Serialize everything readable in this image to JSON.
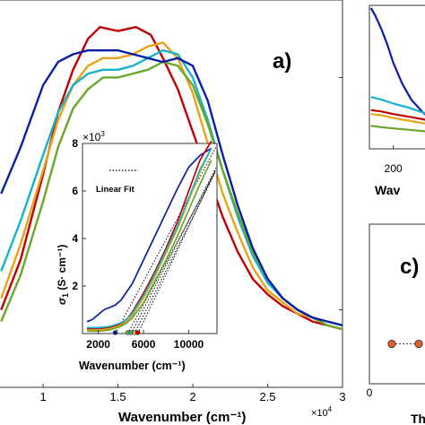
{
  "chart_data": [
    {
      "type": "line",
      "panel_label": "a)",
      "xlabel": "Wavenumber (cm⁻¹)",
      "x_exponent_label": "×10",
      "x_exponent_power": "4",
      "xlim": [
        0.7,
        3.0
      ],
      "ylim": [
        0,
        1
      ],
      "x_ticks": [
        1,
        1.5,
        2,
        2.5,
        3
      ],
      "x_tick_labels": [
        "1",
        "1.5",
        "2",
        "2.5",
        "3"
      ],
      "series": [
        {
          "color": "#c00000",
          "x": [
            0.72,
            0.85,
            1.0,
            1.1,
            1.2,
            1.3,
            1.38,
            1.5,
            1.62,
            1.72,
            1.8,
            1.9,
            2.0,
            2.1,
            2.2,
            2.3,
            2.4,
            2.5,
            2.6,
            2.7,
            2.8,
            2.9,
            3.0
          ],
          "y": [
            0.2,
            0.33,
            0.55,
            0.71,
            0.82,
            0.9,
            0.93,
            0.92,
            0.93,
            0.91,
            0.85,
            0.77,
            0.66,
            0.55,
            0.44,
            0.35,
            0.28,
            0.24,
            0.21,
            0.19,
            0.17,
            0.16,
            0.15
          ]
        },
        {
          "color": "#e8a317",
          "x": [
            0.72,
            0.85,
            1.0,
            1.1,
            1.2,
            1.3,
            1.4,
            1.5,
            1.6,
            1.7,
            1.8,
            1.9,
            2.0,
            2.1,
            2.2,
            2.3,
            2.4,
            2.5,
            2.6,
            2.7,
            2.8,
            2.9,
            3.0
          ],
          "y": [
            0.23,
            0.37,
            0.56,
            0.69,
            0.78,
            0.83,
            0.85,
            0.85,
            0.86,
            0.88,
            0.89,
            0.85,
            0.76,
            0.63,
            0.5,
            0.4,
            0.31,
            0.25,
            0.22,
            0.19,
            0.18,
            0.16,
            0.15
          ]
        },
        {
          "color": "#17b3c8",
          "x": [
            0.72,
            0.85,
            1.0,
            1.1,
            1.2,
            1.3,
            1.4,
            1.5,
            1.6,
            1.7,
            1.8,
            1.9,
            2.0,
            2.1,
            2.2,
            2.3,
            2.4,
            2.5,
            2.6,
            2.7,
            2.8,
            2.9,
            3.0
          ],
          "y": [
            0.3,
            0.43,
            0.6,
            0.71,
            0.78,
            0.81,
            0.82,
            0.82,
            0.83,
            0.85,
            0.87,
            0.86,
            0.8,
            0.69,
            0.56,
            0.44,
            0.34,
            0.27,
            0.23,
            0.2,
            0.18,
            0.17,
            0.16
          ]
        },
        {
          "color": "#6aa628",
          "x": [
            0.72,
            0.85,
            1.0,
            1.1,
            1.2,
            1.3,
            1.4,
            1.5,
            1.6,
            1.7,
            1.8,
            1.9,
            2.0,
            2.1,
            2.2,
            2.3,
            2.4,
            2.5,
            2.6,
            2.7,
            2.8,
            2.9,
            3.0
          ],
          "y": [
            0.17,
            0.29,
            0.48,
            0.62,
            0.72,
            0.77,
            0.8,
            0.8,
            0.81,
            0.82,
            0.84,
            0.83,
            0.78,
            0.68,
            0.56,
            0.45,
            0.35,
            0.28,
            0.23,
            0.2,
            0.18,
            0.16,
            0.15
          ]
        },
        {
          "color": "#0a1fa6",
          "x": [
            0.72,
            0.85,
            1.0,
            1.1,
            1.2,
            1.3,
            1.4,
            1.5,
            1.6,
            1.7,
            1.8,
            1.9,
            2.0,
            2.1,
            2.2,
            2.3,
            2.4,
            2.5,
            2.6,
            2.7,
            2.8,
            2.9,
            3.0
          ],
          "y": [
            0.5,
            0.62,
            0.78,
            0.84,
            0.86,
            0.87,
            0.87,
            0.87,
            0.86,
            0.85,
            0.84,
            0.85,
            0.83,
            0.74,
            0.6,
            0.47,
            0.36,
            0.28,
            0.23,
            0.2,
            0.18,
            0.17,
            0.16
          ]
        }
      ]
    },
    {
      "type": "line",
      "panel_label": "inset",
      "ylabel_symbol": "σ",
      "ylabel_subscript": "1",
      "ylabel_units": " (S· cm⁻¹)",
      "xlabel": "Wavenumber (cm⁻¹)",
      "y_exponent_label": "×10",
      "y_exponent_power": "3",
      "legend": {
        "entry": "Linear Fit",
        "line_style": "dotted",
        "placement": "top-left"
      },
      "xlim": [
        600,
        12500
      ],
      "ylim": [
        0,
        8
      ],
      "x_ticks": [
        2000,
        6000,
        10000
      ],
      "x_tick_labels": [
        "2000",
        "6000",
        "10000"
      ],
      "y_ticks": [
        2,
        4,
        6,
        8
      ],
      "y_tick_labels": [
        "2",
        "4",
        "6",
        "8"
      ],
      "series": [
        {
          "color": "#0a1fa6",
          "x": [
            1000,
            1500,
            2000,
            2500,
            3000,
            3500,
            4000,
            5000,
            6000,
            7000,
            8000,
            9000,
            10000,
            11000,
            12000
          ],
          "y": [
            0.5,
            0.6,
            0.8,
            1.0,
            1.1,
            1.2,
            1.4,
            2.1,
            3.1,
            4.1,
            5.1,
            6.1,
            7.0,
            7.5,
            7.8
          ]
        },
        {
          "color": "#c00000",
          "x": [
            1000,
            2000,
            3000,
            4000,
            4500,
            5000,
            6000,
            7000,
            8000,
            9000,
            10000,
            11000,
            12000
          ],
          "y": [
            0.2,
            0.2,
            0.25,
            0.4,
            0.6,
            0.9,
            1.7,
            2.6,
            3.6,
            4.7,
            6.0,
            7.3,
            8.1
          ]
        },
        {
          "color": "#e8a317",
          "x": [
            1000,
            2000,
            3000,
            4000,
            4500,
            5000,
            6000,
            7000,
            8000,
            9000,
            10000,
            11000,
            12000
          ],
          "y": [
            0.15,
            0.15,
            0.2,
            0.35,
            0.5,
            0.75,
            1.5,
            2.4,
            3.4,
            4.4,
            5.6,
            6.8,
            7.8
          ]
        },
        {
          "color": "#17b3c8",
          "x": [
            1000,
            2000,
            3000,
            4000,
            4500,
            5000,
            6000,
            7000,
            8000,
            9000,
            10000,
            11000,
            12000
          ],
          "y": [
            0.25,
            0.25,
            0.3,
            0.45,
            0.6,
            0.85,
            1.6,
            2.5,
            3.5,
            4.5,
            5.7,
            6.9,
            7.8
          ]
        },
        {
          "color": "#6aa628",
          "x": [
            1000,
            2000,
            3000,
            4000,
            4500,
            5000,
            6000,
            7000,
            8000,
            9000,
            10000,
            11000,
            12000
          ],
          "y": [
            0.1,
            0.1,
            0.15,
            0.3,
            0.45,
            0.65,
            1.3,
            2.2,
            3.1,
            4.1,
            5.2,
            6.3,
            7.3
          ]
        }
      ],
      "linear_fits": [
        {
          "color": "#0a1fa6",
          "x0": 3500,
          "slope": 0.00088
        },
        {
          "color": "#6aa628",
          "x0": 4600,
          "slope": 0.00088
        },
        {
          "color": "#17b3c8",
          "x0": 4900,
          "slope": 0.00093
        },
        {
          "color": "#e8a317",
          "x0": 5200,
          "slope": 0.00095
        },
        {
          "color": "#c00000",
          "x0": 5500,
          "slope": 0.001
        }
      ]
    },
    {
      "type": "line",
      "panel_label": "top-right (cropped)",
      "xlabel": "Wav",
      "xlim": [
        120,
        330
      ],
      "ylim": [
        0,
        1
      ],
      "x_ticks": [
        200
      ],
      "x_tick_labels": [
        "200"
      ],
      "series": [
        {
          "color": "#0a1fa6",
          "x": [
            125,
            140,
            160,
            180,
            200,
            230,
            260,
            300,
            330
          ],
          "y": [
            0.98,
            0.92,
            0.82,
            0.7,
            0.56,
            0.4,
            0.28,
            0.18,
            0.12
          ]
        },
        {
          "color": "#17b3c8",
          "x": [
            125,
            160,
            200,
            250,
            300,
            330
          ],
          "y": [
            0.3,
            0.28,
            0.25,
            0.22,
            0.18,
            0.16
          ]
        },
        {
          "color": "#c00000",
          "x": [
            125,
            160,
            200,
            250,
            300,
            330
          ],
          "y": [
            0.2,
            0.19,
            0.17,
            0.15,
            0.13,
            0.11
          ]
        },
        {
          "color": "#e8a317",
          "x": [
            125,
            160,
            200,
            250,
            300,
            330
          ],
          "y": [
            0.17,
            0.16,
            0.14,
            0.12,
            0.1,
            0.09
          ]
        },
        {
          "color": "#6aa628",
          "x": [
            125,
            160,
            200,
            250,
            300,
            330
          ],
          "y": [
            0.08,
            0.07,
            0.06,
            0.05,
            0.04,
            0.03
          ]
        }
      ]
    },
    {
      "type": "scatter",
      "panel_label": "c)",
      "xlabel": "Th",
      "xlim": [
        0,
        100
      ],
      "ylim": [
        0,
        1
      ],
      "x_ticks": [
        0
      ],
      "x_tick_labels": [
        "0"
      ],
      "series": [
        {
          "color": "#e0602a",
          "marker": "circle",
          "line_style": "dotted",
          "x": [
            25,
            55
          ],
          "y": [
            0.25,
            0.25
          ]
        }
      ]
    }
  ]
}
